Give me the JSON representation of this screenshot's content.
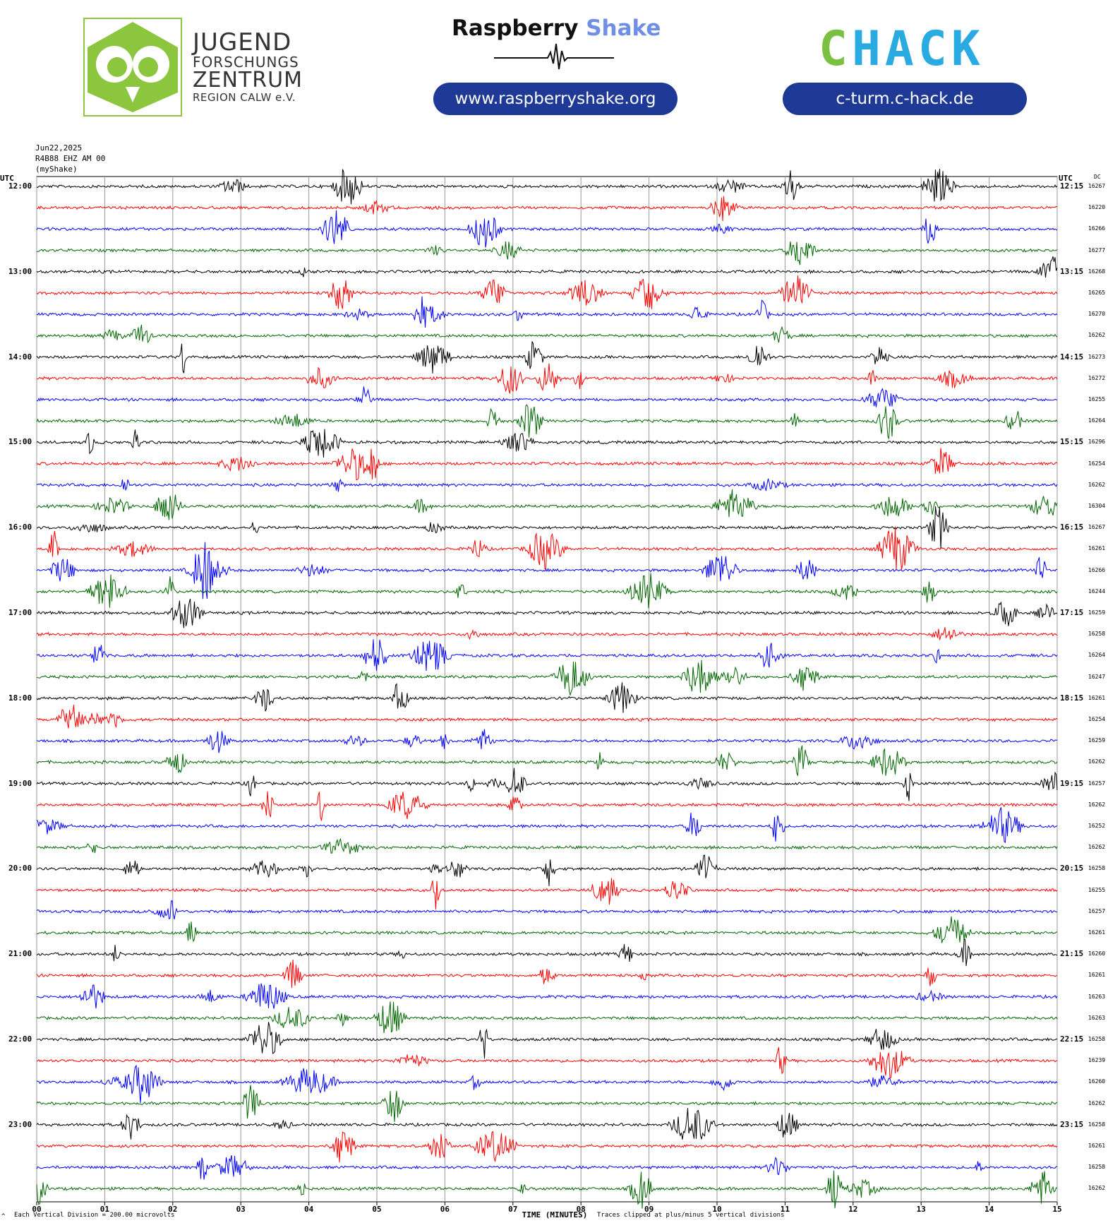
{
  "header": {
    "jfz": {
      "line1": "JUGEND",
      "line2": "FORSCHUNGS",
      "line3": "ZENTRUM",
      "line4": "REGION CALW e.V."
    },
    "rs": {
      "part1": "Raspberry",
      "part2": "Shake",
      "url": "www.raspberryshake.org"
    },
    "chack": {
      "c1": "C",
      "h": "H",
      "a": "A",
      "c2": "C",
      "k": "K",
      "url": "c-turm.c-hack.de"
    }
  },
  "meta": {
    "date": "Jun22,2025",
    "station": "R4B88 EHZ AM 00",
    "source": "(myShake)"
  },
  "chart_data": {
    "type": "line",
    "left_axis_label": "UTC",
    "right_axis_label": "UTC",
    "dc_label": "DC",
    "xlabel": "TIME (MINUTES)",
    "x_ticks": [
      "00",
      "01",
      "02",
      "03",
      "04",
      "05",
      "06",
      "07",
      "08",
      "09",
      "10",
      "11",
      "12",
      "13",
      "14",
      "15"
    ],
    "xlim": [
      0,
      15
    ],
    "left_hours": [
      "12:00",
      "13:00",
      "14:00",
      "15:00",
      "16:00",
      "17:00",
      "18:00",
      "19:00",
      "20:00",
      "21:00",
      "22:00",
      "23:00"
    ],
    "right_hours": [
      "12:15",
      "13:15",
      "14:15",
      "15:15",
      "16:15",
      "17:15",
      "18:15",
      "19:15",
      "20:15",
      "21:15",
      "22:15",
      "23:15"
    ],
    "trace_colors": [
      "#000000",
      "#ff0000",
      "#0000ff",
      "#006600"
    ],
    "dc_values": [
      "16267",
      "16220",
      "16266",
      "16277",
      "16268",
      "16265",
      "16270",
      "16262",
      "16273",
      "16272",
      "16255",
      "16264",
      "16296",
      "16254",
      "16262",
      "16304",
      "16267",
      "16261",
      "16266",
      "16244",
      "16259",
      "16258",
      "16264",
      "16247",
      "16261",
      "16254",
      "16259",
      "16262",
      "16257",
      "16262",
      "16252",
      "16262",
      "16258",
      "16255",
      "16257",
      "16261",
      "16260",
      "16261",
      "16263",
      "16263",
      "16258",
      "16239",
      "16260",
      "16262",
      "16258",
      "16261",
      "16258",
      "16262"
    ],
    "vertical_division": "Each Vertical Division =  200.00 microvolts",
    "clip_note": "Traces clipped at plus/minus 5 vertical divisions",
    "corner_mark": "^"
  }
}
